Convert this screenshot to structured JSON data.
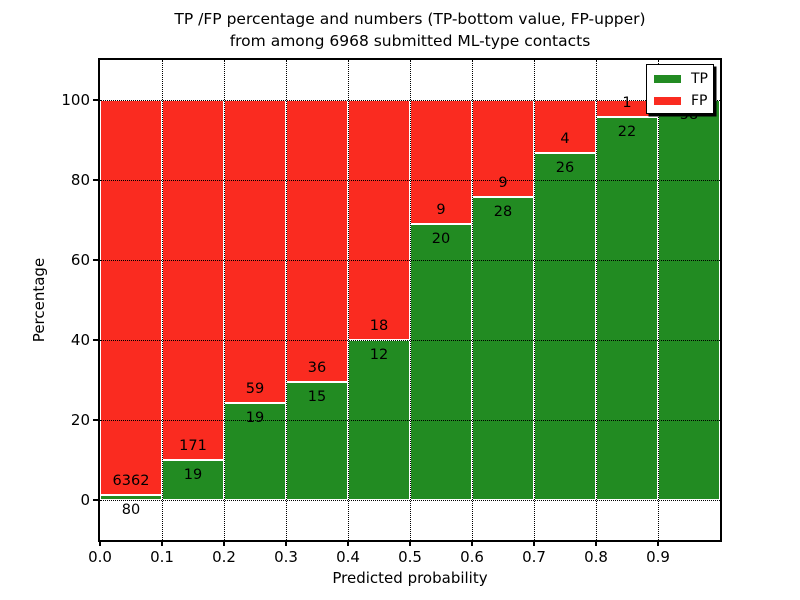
{
  "title": {
    "line1": "TP /FP percentage and numbers (TP-bottom value, FP-upper)",
    "line2": "from among 6968 submitted ML-type contacts"
  },
  "axes": {
    "x_label": "Predicted probability",
    "y_label": "Percentage",
    "x_ticks": [
      "0.0",
      "0.1",
      "0.2",
      "0.3",
      "0.4",
      "0.5",
      "0.6",
      "0.7",
      "0.8",
      "0.9"
    ],
    "y_ticks": [
      "0",
      "20",
      "40",
      "60",
      "80",
      "100"
    ]
  },
  "legend": [
    {
      "label": "TP",
      "color": "#228b22"
    },
    {
      "label": "FP",
      "color": "#fa2b20"
    }
  ],
  "colors": {
    "tp": "#228b22",
    "fp": "#fa2b20",
    "grid": "#000000",
    "bar_edge": "#ffffff",
    "background": "#ffffff",
    "text": "#000000"
  },
  "chart_data": {
    "type": "bar",
    "stacked": true,
    "normalized_to_percent": true,
    "title": "TP /FP percentage and numbers (TP-bottom value, FP-upper) from among 6968 submitted ML-type contacts",
    "xlabel": "Predicted probability",
    "ylabel": "Percentage",
    "xlim": [
      0.0,
      1.0
    ],
    "ylim": [
      -10,
      110
    ],
    "bin_width": 0.1,
    "categories": [
      "0.0-0.1",
      "0.1-0.2",
      "0.2-0.3",
      "0.3-0.4",
      "0.4-0.5",
      "0.5-0.6",
      "0.6-0.7",
      "0.7-0.8",
      "0.8-0.9",
      "0.9-1.0"
    ],
    "series": [
      {
        "name": "TP",
        "counts": [
          80,
          19,
          19,
          15,
          12,
          20,
          28,
          26,
          22,
          58
        ]
      },
      {
        "name": "FP",
        "counts": [
          6362,
          171,
          59,
          36,
          18,
          9,
          9,
          4,
          1,
          0
        ]
      }
    ],
    "tp_percent_heights": [
      1.2,
      10.0,
      24.4,
      29.4,
      40.0,
      69.0,
      75.7,
      86.7,
      95.7,
      100.0
    ],
    "total_contacts": 6968,
    "legend_position": "upper right",
    "grid": "dotted"
  }
}
